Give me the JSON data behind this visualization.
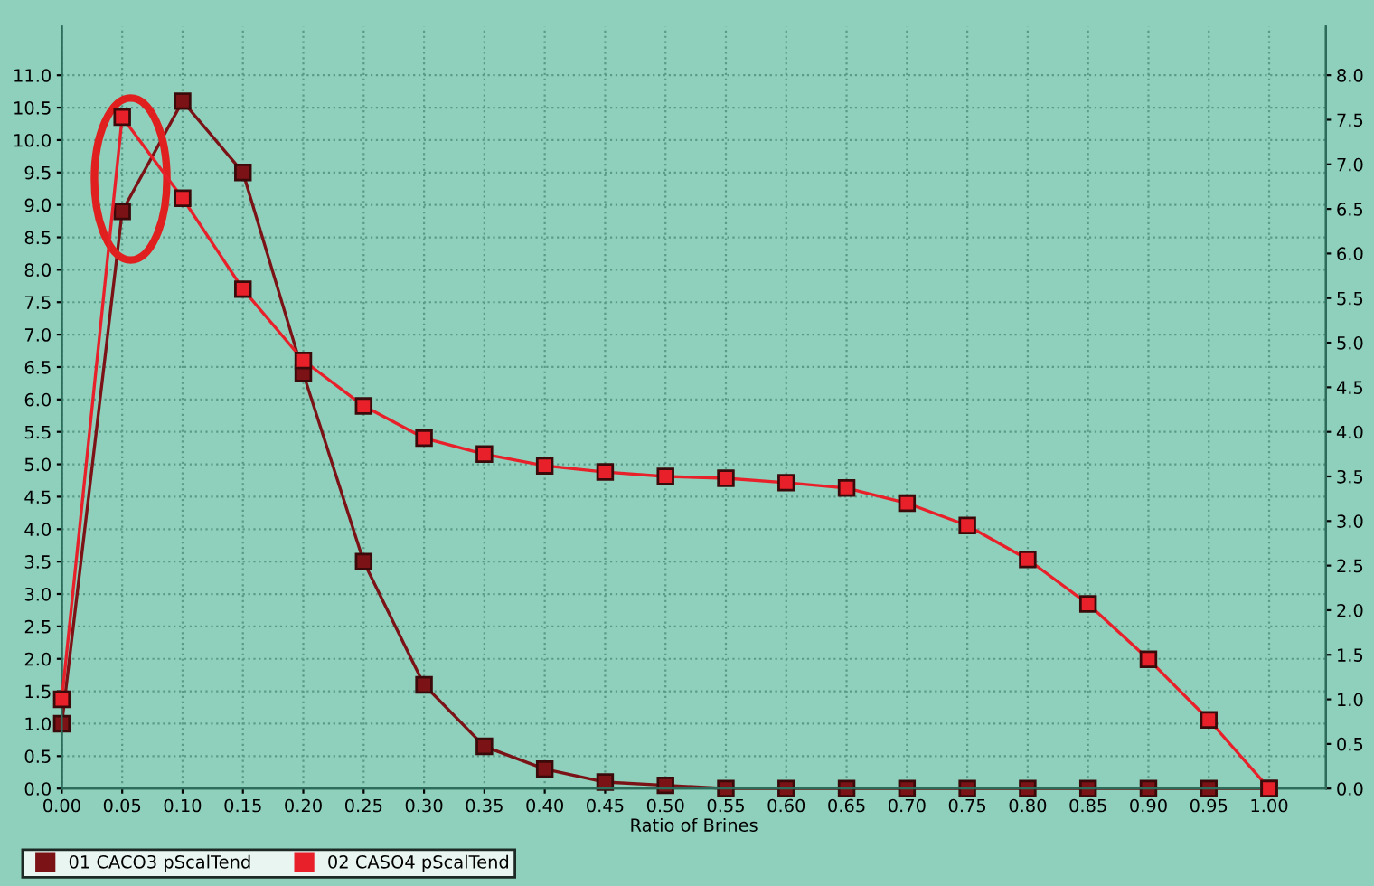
{
  "chart_data": {
    "type": "line",
    "xlabel": "Ratio of Brines",
    "x": [
      0.0,
      0.05,
      0.1,
      0.15,
      0.2,
      0.25,
      0.3,
      0.35,
      0.4,
      0.45,
      0.5,
      0.55,
      0.6,
      0.65,
      0.7,
      0.75,
      0.8,
      0.85,
      0.9,
      0.95,
      1.0
    ],
    "series": [
      {
        "name": "01 CACO3 pScalTend",
        "color": "#7a1216",
        "values": [
          1.0,
          8.9,
          10.6,
          9.5,
          6.4,
          3.5,
          1.6,
          0.65,
          0.3,
          0.1,
          0.05,
          0.0,
          0.0,
          0.0,
          0.0,
          0.0,
          0.0,
          0.0,
          0.0,
          0.0,
          0.0
        ]
      },
      {
        "name": "02 CASO4 pScalTend",
        "color": "#e8202a",
        "axis": "y2",
        "values": [
          1.0,
          7.53,
          6.62,
          5.6,
          4.8,
          4.29,
          3.93,
          3.75,
          3.62,
          3.55,
          3.5,
          3.48,
          3.43,
          3.37,
          3.2,
          2.95,
          2.57,
          2.07,
          1.45,
          0.77,
          0.0
        ]
      }
    ],
    "xlim": [
      0.0,
      1.047
    ],
    "xticks": [
      {
        "value": 0.0,
        "label": "0.00"
      },
      {
        "value": 0.05,
        "label": "0.05"
      },
      {
        "value": 0.1,
        "label": "0.10"
      },
      {
        "value": 0.15,
        "label": "0.15"
      },
      {
        "value": 0.2,
        "label": "0.20"
      },
      {
        "value": 0.25,
        "label": "0.25"
      },
      {
        "value": 0.3,
        "label": "0.30"
      },
      {
        "value": 0.35,
        "label": "0.35"
      },
      {
        "value": 0.4,
        "label": "0.40"
      },
      {
        "value": 0.45,
        "label": "0.45"
      },
      {
        "value": 0.5,
        "label": "0.50"
      },
      {
        "value": 0.55,
        "label": "0.55"
      },
      {
        "value": 0.6,
        "label": "0.60"
      },
      {
        "value": 0.65,
        "label": "0.65"
      },
      {
        "value": 0.7,
        "label": "0.70"
      },
      {
        "value": 0.75,
        "label": "0.75"
      },
      {
        "value": 0.8,
        "label": "0.80"
      },
      {
        "value": 0.85,
        "label": "0.85"
      },
      {
        "value": 0.9,
        "label": "0.90"
      },
      {
        "value": 0.95,
        "label": "0.95"
      },
      {
        "value": 1.0,
        "label": "1.00"
      }
    ],
    "ylim": [
      0.0,
      11.75
    ],
    "yticks": [
      {
        "value": 0.0,
        "label": "0.0"
      },
      {
        "value": 0.5,
        "label": "0.5"
      },
      {
        "value": 1.0,
        "label": "1.0"
      },
      {
        "value": 1.5,
        "label": "1.5"
      },
      {
        "value": 2.0,
        "label": "2.0"
      },
      {
        "value": 2.5,
        "label": "2.5"
      },
      {
        "value": 3.0,
        "label": "3.0"
      },
      {
        "value": 3.5,
        "label": "3.5"
      },
      {
        "value": 4.0,
        "label": "4.0"
      },
      {
        "value": 4.5,
        "label": "4.5"
      },
      {
        "value": 5.0,
        "label": "5.0"
      },
      {
        "value": 5.5,
        "label": "5.5"
      },
      {
        "value": 6.0,
        "label": "6.0"
      },
      {
        "value": 6.5,
        "label": "6.5"
      },
      {
        "value": 7.0,
        "label": "7.0"
      },
      {
        "value": 7.5,
        "label": "7.5"
      },
      {
        "value": 8.0,
        "label": "8.0"
      },
      {
        "value": 8.5,
        "label": "8.5"
      },
      {
        "value": 9.0,
        "label": "9.0"
      },
      {
        "value": 9.5,
        "label": "9.5"
      },
      {
        "value": 10.0,
        "label": "10.0"
      },
      {
        "value": 10.5,
        "label": "10.5"
      },
      {
        "value": 11.0,
        "label": "11.0"
      }
    ],
    "y2lim": [
      0.0,
      8.545
    ],
    "y2ticks": [
      {
        "value": 0.0,
        "label": "0.0"
      },
      {
        "value": 0.5,
        "label": "0.5"
      },
      {
        "value": 1.0,
        "label": "1.0"
      },
      {
        "value": 1.5,
        "label": "1.5"
      },
      {
        "value": 2.0,
        "label": "2.0"
      },
      {
        "value": 2.5,
        "label": "2.5"
      },
      {
        "value": 3.0,
        "label": "3.0"
      },
      {
        "value": 3.5,
        "label": "3.5"
      },
      {
        "value": 4.0,
        "label": "4.0"
      },
      {
        "value": 4.5,
        "label": "4.5"
      },
      {
        "value": 5.0,
        "label": "5.0"
      },
      {
        "value": 5.5,
        "label": "5.5"
      },
      {
        "value": 6.0,
        "label": "6.0"
      },
      {
        "value": 6.5,
        "label": "6.5"
      },
      {
        "value": 7.0,
        "label": "7.0"
      },
      {
        "value": 7.5,
        "label": "7.5"
      },
      {
        "value": 8.0,
        "label": "8.0"
      }
    ],
    "grid": true,
    "legend": "bottom",
    "marker": "square",
    "line_style": "solid"
  }
}
